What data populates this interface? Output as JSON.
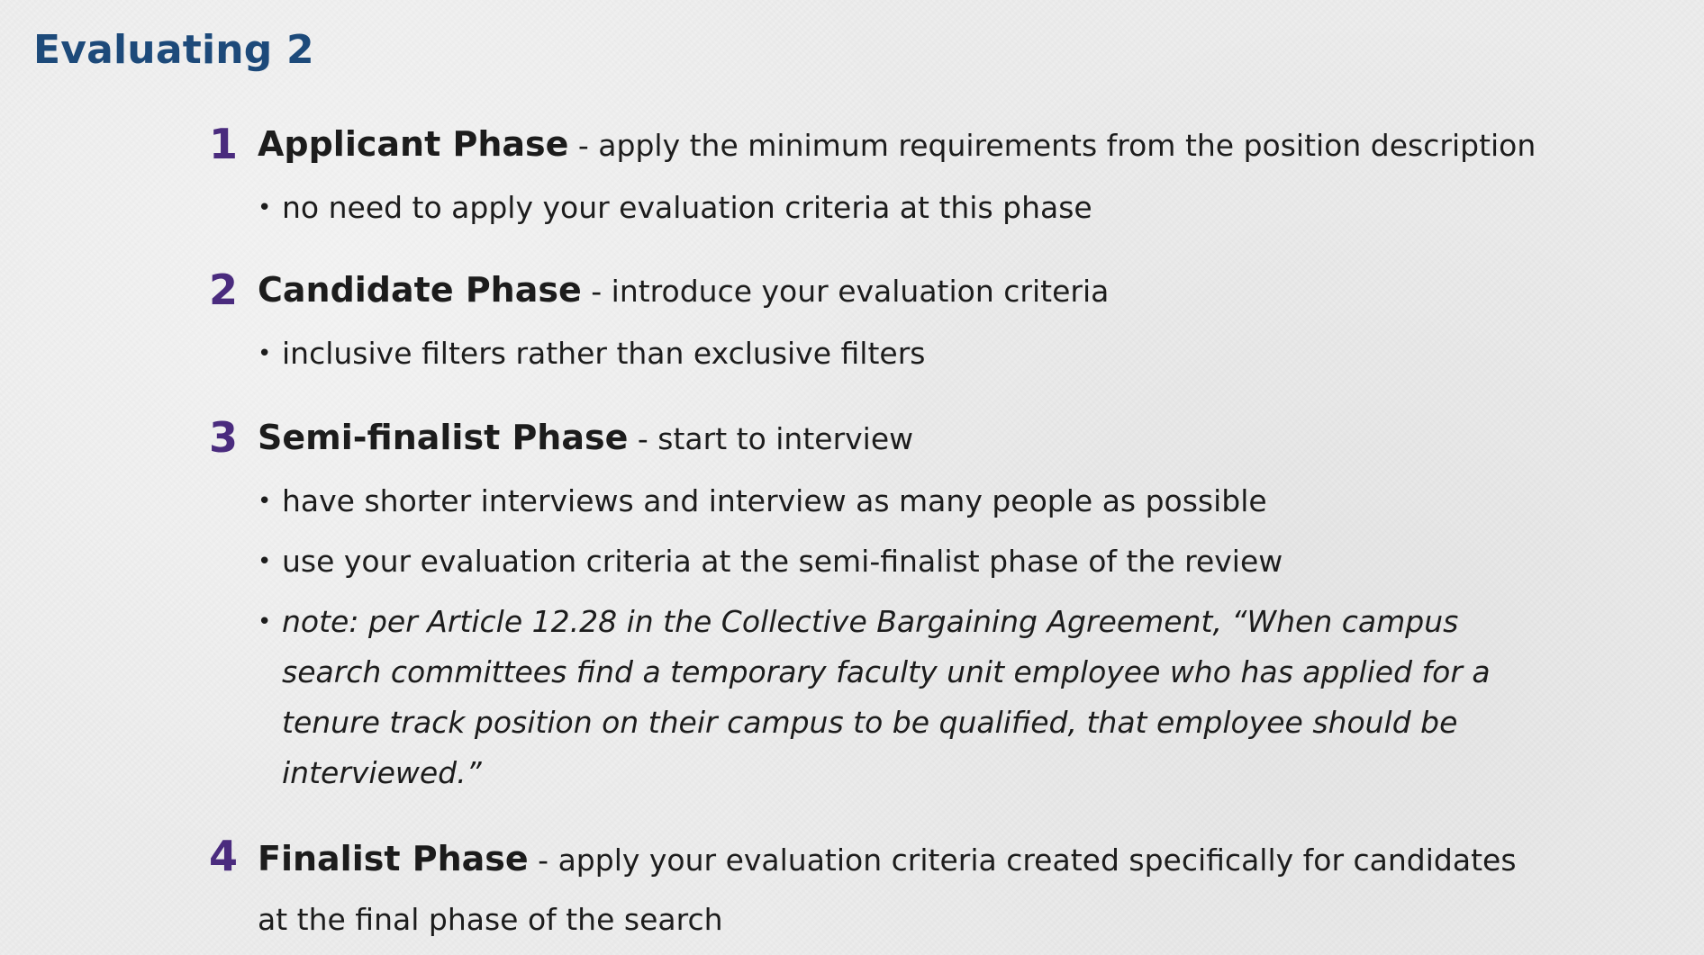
{
  "title": "Evaluating 2",
  "phases": [
    {
      "number": "1",
      "name": "Applicant Phase",
      "description": " - apply the minimum requirements from the position description",
      "bullets": [
        "no need to apply your evaluation criteria at this phase"
      ]
    },
    {
      "number": "2",
      "name": "Candidate Phase",
      "description": " - introduce your evaluation criteria",
      "bullets": [
        "inclusive filters rather than exclusive filters"
      ]
    },
    {
      "number": "3",
      "name": "Semi-finalist Phase",
      "description": " - start to interview",
      "bullets": [
        "have shorter interviews and interview as many people as possible",
        "use your evaluation criteria at the semi-finalist phase of the review"
      ],
      "note": "note: per Article 12.28 in the Collective Bargaining Agreement, “When campus search committees find a temporary faculty unit employee who has applied for a tenure track position on their campus to be qualified, that employee should be interviewed.”"
    },
    {
      "number": "4",
      "name": "Finalist Phase",
      "description": " - apply your evaluation criteria created specifically for candidates at the final phase of the search",
      "bullets": []
    }
  ],
  "colors": {
    "title": "#1d4a7a",
    "number": "#4a2b7e",
    "text": "#1c1c1c",
    "background": "#ededed"
  }
}
